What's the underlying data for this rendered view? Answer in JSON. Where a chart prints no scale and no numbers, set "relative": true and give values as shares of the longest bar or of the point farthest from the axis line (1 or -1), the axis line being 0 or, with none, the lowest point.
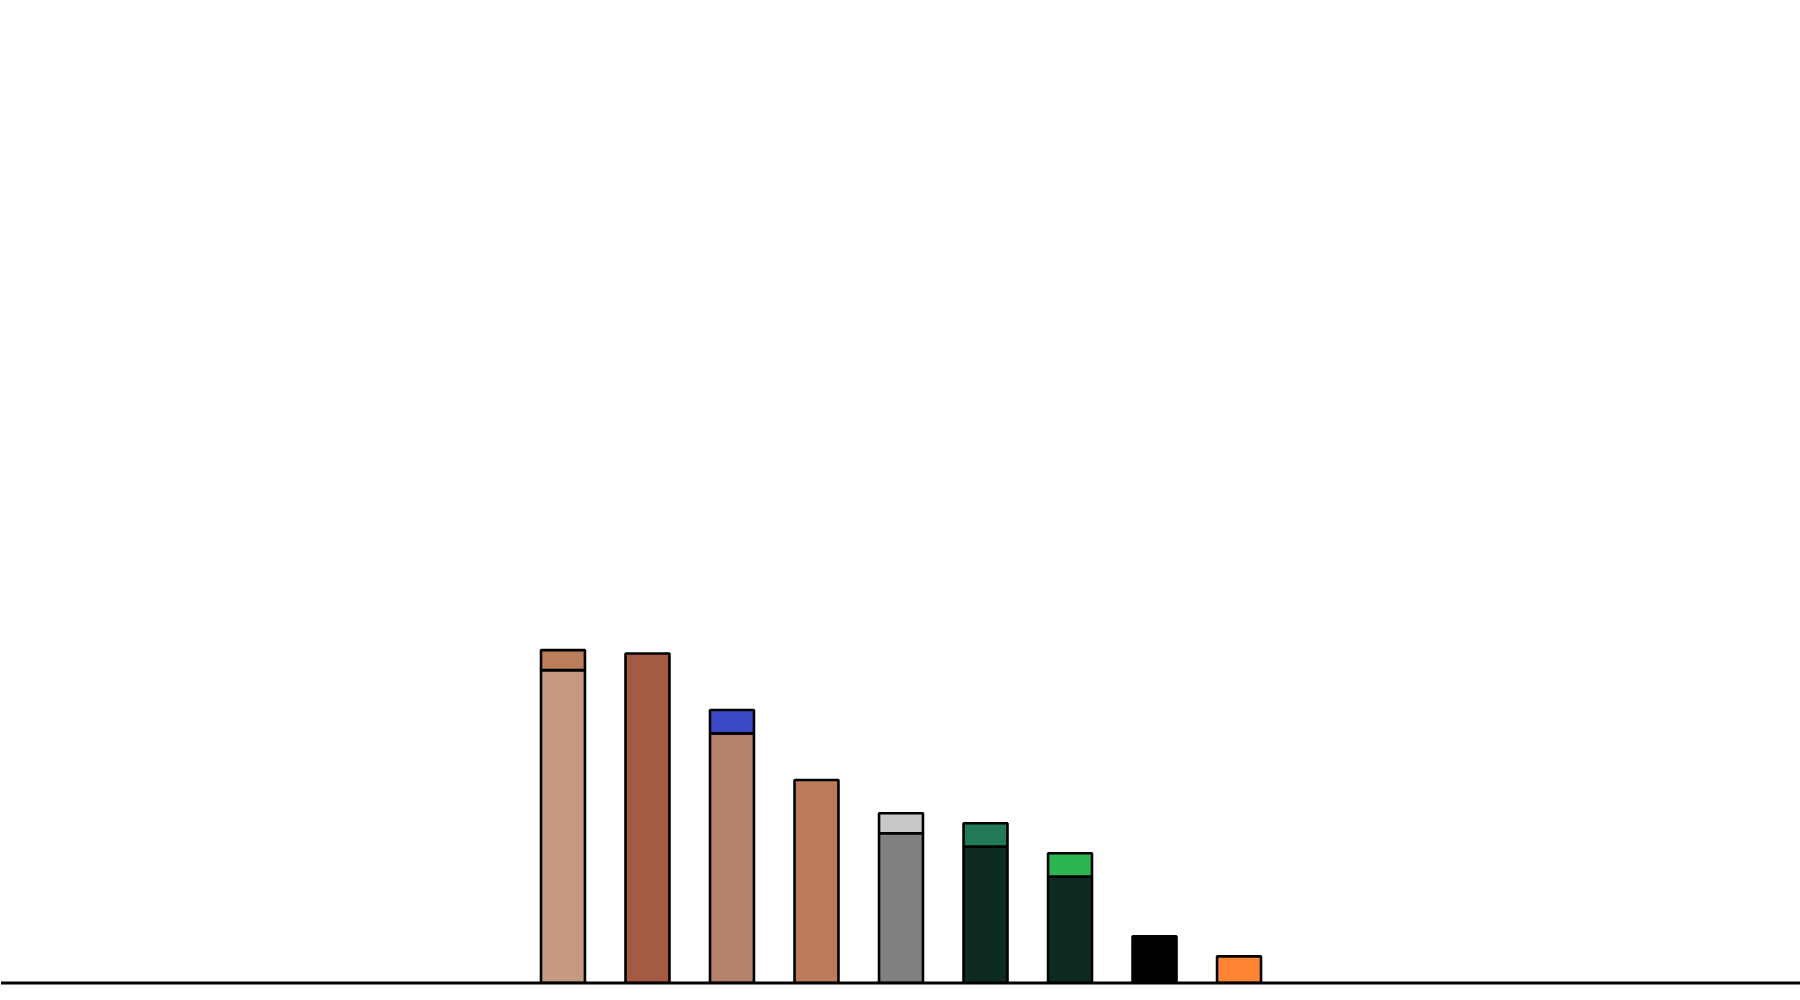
{
  "chart_data": {
    "type": "bar",
    "relative": true,
    "stacked": true,
    "categories": [
      null,
      null,
      null,
      null,
      null,
      null,
      null,
      null,
      null
    ],
    "series": [
      {
        "colors": [
          "#c59a80",
          "#a55a44",
          "#b6826a",
          "#bc7c5a",
          "#808080",
          "#0d2b1f",
          "#0d2b1f",
          "#000000",
          "#ff8433"
        ],
        "values": [
          0.94,
          0.99,
          0.75,
          0.61,
          0.45,
          0.41,
          0.32,
          0.14,
          0.08
        ]
      },
      {
        "colors": [
          "#bb7e5b",
          null,
          "#3b4bc8",
          null,
          "#c8c8c8",
          "#217a55",
          "#2db553",
          null,
          null
        ],
        "values": [
          0.06,
          null,
          0.07,
          null,
          0.06,
          0.07,
          0.07,
          null,
          null
        ]
      }
    ]
  }
}
